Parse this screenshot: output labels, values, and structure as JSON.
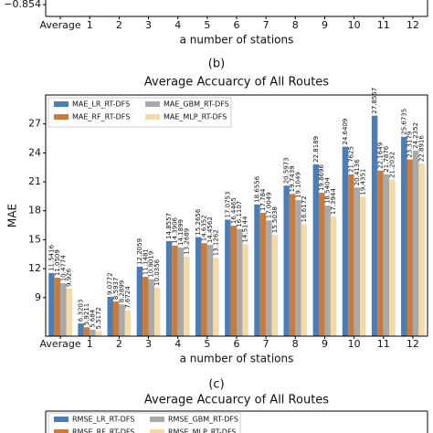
{
  "chart_data": [
    {
      "type": "bar",
      "categories": [
        "Average",
        "1",
        "2",
        "3",
        "4",
        "5",
        "6",
        "7",
        "8",
        "9",
        "10",
        "11",
        "12"
      ],
      "xlabel": "a number of stations",
      "yticks": [
        {
          "value": -0.854,
          "label": "−0.854"
        }
      ],
      "caption": "(b)"
    },
    {
      "type": "bar",
      "title": "Average Accuarcy of All Routes",
      "ylabel": "MAE",
      "xlabel": "a number of stations",
      "categories": [
        "Average",
        "1",
        "2",
        "3",
        "4",
        "5",
        "6",
        "7",
        "8",
        "9",
        "10",
        "11",
        "12"
      ],
      "ylim": [
        5,
        30
      ],
      "yticks": [
        9,
        12,
        15,
        18,
        21,
        24,
        27
      ],
      "legend": "upper left",
      "series": [
        {
          "name": "MAE_LR_RT-DFS",
          "color": "#4c7db4",
          "values": [
            11.5416,
            6.3203,
            9.0772,
            12.2059,
            14.8557,
            15.2656,
            17.0753,
            18.6556,
            20.5973,
            22.8189,
            24.6409,
            27.8557,
            25.6735
          ]
        },
        {
          "name": "MAE_RF_RT-DFS",
          "color": "#c97b3b",
          "values": [
            11.0509,
            5.9211,
            8.5937,
            11.1481,
            14.3906,
            14.6352,
            16.4465,
            17.784,
            19.7439,
            19.8696,
            21.7625,
            22.1649,
            23.3179
          ]
        },
        {
          "name": "MAE_GBM_RT-DFS",
          "color": "#a9a9a9",
          "values": [
            10.4774,
            5.684,
            8.2899,
            10.9019,
            14.1899,
            14.4562,
            16.1107,
            17.0049,
            19.1049,
            18.5404,
            20.4136,
            21.7876,
            24.2352
          ]
        },
        {
          "name": "MAE_MLP_RT-DFS",
          "color": "#f4d9a9",
          "values": [
            9.926,
            5.5172,
            7.6724,
            10.0356,
            13.2689,
            13.1262,
            14.5144,
            15.5038,
            16.6172,
            17.3944,
            19.4351,
            21.2032,
            22.8916
          ]
        }
      ],
      "caption": "(c)"
    },
    {
      "type": "bar",
      "title": "Average Accuarcy of All Routes",
      "legend": "upper left",
      "series": [
        {
          "name": "RMSE_LR_RT-DFS",
          "color": "#4c7db4"
        },
        {
          "name": "RMSE_RF_RT-DFS",
          "color": "#c97b3b"
        },
        {
          "name": "RMSE_GBM_RT-DFS",
          "color": "#a9a9a9"
        },
        {
          "name": "RMSE_MLP_RT-DFS",
          "color": "#f4d9a9"
        }
      ]
    }
  ]
}
